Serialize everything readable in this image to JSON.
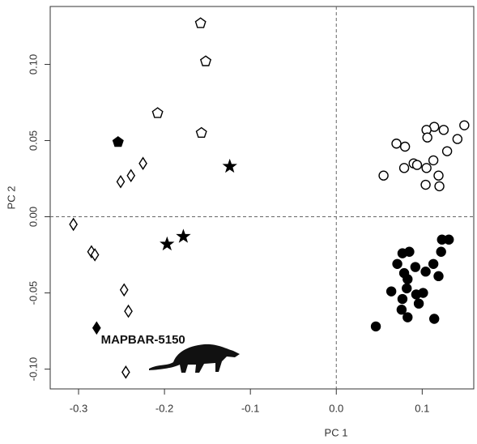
{
  "chart_data": {
    "type": "scatter",
    "x_label": "PC 1",
    "y_label": "PC 2",
    "xlim": [
      -0.333,
      0.16
    ],
    "ylim": [
      -0.113,
      0.138
    ],
    "xticks": [
      -0.3,
      -0.2,
      -0.1,
      {
        "value": 0,
        "label": "0.0"
      },
      0.1
    ],
    "yticks": [
      {
        "value": -0.1,
        "label": "-0.10"
      },
      -0.05,
      {
        "value": 0,
        "label": "0.00"
      },
      0.05,
      {
        "value": 0.1,
        "label": "0.10"
      }
    ],
    "reference_lines": {
      "x": 0,
      "y": 0
    },
    "annotation": {
      "text": "MAPBAR-5150",
      "x": -0.274,
      "y": -0.081
    },
    "series": [
      {
        "marker": "circle",
        "filled": false,
        "color": "#000000",
        "x": [
          0.149,
          0.114,
          0.125,
          0.105,
          0.106,
          0.141,
          0.07,
          0.08,
          0.129,
          0.113,
          0.09,
          0.094,
          0.079,
          0.105,
          0.055,
          0.119,
          0.104,
          0.12
        ],
        "values": [
          0.06,
          0.059,
          0.057,
          0.057,
          0.052,
          0.051,
          0.048,
          0.046,
          0.043,
          0.037,
          0.035,
          0.034,
          0.032,
          0.032,
          0.027,
          0.027,
          0.021,
          0.02
        ]
      },
      {
        "marker": "circle",
        "filled": true,
        "color": "#000000",
        "x": [
          0.123,
          0.131,
          0.085,
          0.077,
          0.122,
          0.071,
          0.113,
          0.092,
          0.079,
          0.104,
          0.119,
          0.083,
          0.082,
          0.064,
          0.093,
          0.101,
          0.077,
          0.096,
          0.076,
          0.083,
          0.114,
          0.046
        ],
        "values": [
          -0.015,
          -0.015,
          -0.023,
          -0.024,
          -0.023,
          -0.031,
          -0.031,
          -0.033,
          -0.037,
          -0.036,
          -0.039,
          -0.041,
          -0.047,
          -0.049,
          -0.051,
          -0.05,
          -0.054,
          -0.057,
          -0.061,
          -0.066,
          -0.067,
          -0.072
        ]
      },
      {
        "marker": "pentagon",
        "filled": false,
        "color": "#000000",
        "x": [
          -0.158,
          -0.152,
          -0.208,
          -0.157
        ],
        "values": [
          0.127,
          0.102,
          0.068,
          0.055
        ]
      },
      {
        "marker": "pentagon",
        "filled": true,
        "color": "#000000",
        "x": [
          -0.254
        ],
        "values": [
          0.049
        ]
      },
      {
        "marker": "star",
        "filled": true,
        "color": "#000000",
        "x": [
          -0.124,
          -0.197,
          -0.178
        ],
        "values": [
          0.033,
          -0.018,
          -0.013
        ]
      },
      {
        "marker": "diamond",
        "filled": false,
        "color": "#000000",
        "x": [
          -0.225,
          -0.239,
          -0.251,
          -0.306,
          -0.285,
          -0.281,
          -0.247,
          -0.242,
          -0.245
        ],
        "values": [
          0.035,
          0.027,
          0.023,
          -0.005,
          -0.023,
          -0.025,
          -0.048,
          -0.062,
          -0.102
        ]
      },
      {
        "marker": "diamond",
        "filled": true,
        "color": "#000000",
        "x": [
          -0.279
        ],
        "values": [
          -0.073
        ]
      }
    ]
  }
}
